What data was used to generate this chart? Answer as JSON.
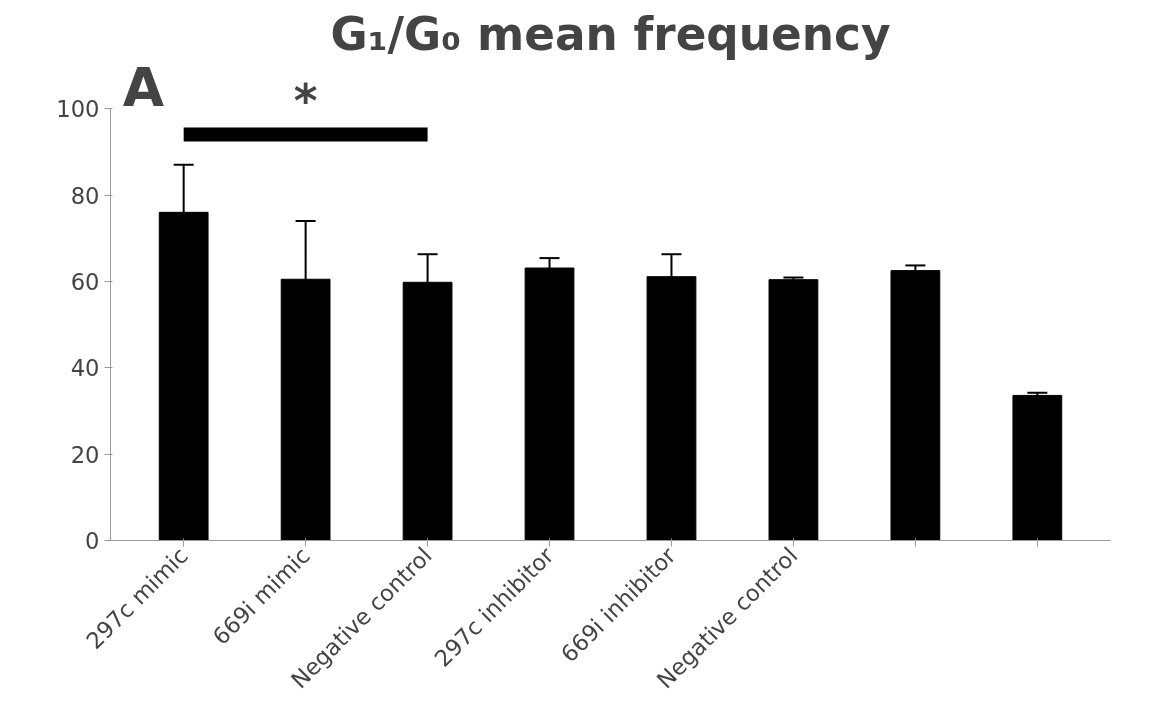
{
  "chart_data": {
    "type": "bar",
    "title": "G₁/G₀ mean frequency",
    "categories": [
      "297c mimic",
      "669i mimic",
      "Negative control",
      "297c inhibitor",
      "669i inhibitor",
      "Negative control",
      null,
      null
    ],
    "values": [
      76,
      60.5,
      59.8,
      63.1,
      61.1,
      60.4,
      62.5,
      33.6
    ],
    "errors": [
      11,
      13.5,
      6.5,
      2.3,
      5.2,
      0.5,
      1.2,
      0.6
    ],
    "color": "#000000",
    "ylim": [
      0,
      100
    ],
    "yticks": [
      0,
      20,
      40,
      60,
      80,
      100
    ],
    "grid": false,
    "annotations": [
      "A",
      "*"
    ]
  }
}
